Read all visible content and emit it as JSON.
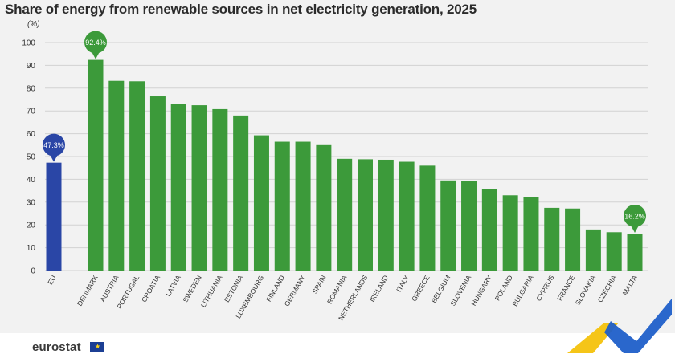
{
  "page": {
    "logo_text": "eurostat",
    "flag_icon": "eu-flag-icon"
  },
  "chart_data": {
    "type": "bar",
    "title": "Share of energy from renewable sources in net electricity generation, 2025",
    "ylabel": "(%)",
    "xlabel": "",
    "ylim": [
      0,
      100
    ],
    "yticks": [
      0,
      10,
      20,
      30,
      40,
      50,
      60,
      70,
      80,
      90,
      100
    ],
    "grid": true,
    "categories": [
      "EU",
      "DENMARK",
      "AUSTRIA",
      "PORTUGAL",
      "CROATIA",
      "LATVIA",
      "SWEDEN",
      "LITHUANIA",
      "ESTONIA",
      "LUXEMBOURG",
      "FINLAND",
      "GERMANY",
      "SPAIN",
      "ROMANIA",
      "NETHERLANDS",
      "IRELAND",
      "ITALY",
      "GREECE",
      "BELGIUM",
      "SLOVENIA",
      "HUNGARY",
      "POLAND",
      "BULGARIA",
      "CYPRUS",
      "FRANCE",
      "SLOVAKIA",
      "CZECHIA",
      "MALTA"
    ],
    "values": [
      47.3,
      92.4,
      83.2,
      83.0,
      76.4,
      73.0,
      72.5,
      70.8,
      68.0,
      59.3,
      56.5,
      56.5,
      55.0,
      49.0,
      48.8,
      48.6,
      47.7,
      46.0,
      39.5,
      39.4,
      35.7,
      33.0,
      32.3,
      27.5,
      27.2,
      18.0,
      16.8,
      16.2
    ],
    "colors": {
      "eu": "#2a46a6",
      "country": "#3c9a3a"
    },
    "annotations": [
      {
        "category": "EU",
        "label": "47.3%"
      },
      {
        "category": "DENMARK",
        "label": "92.4%"
      },
      {
        "category": "MALTA",
        "label": "16.2%"
      }
    ]
  }
}
